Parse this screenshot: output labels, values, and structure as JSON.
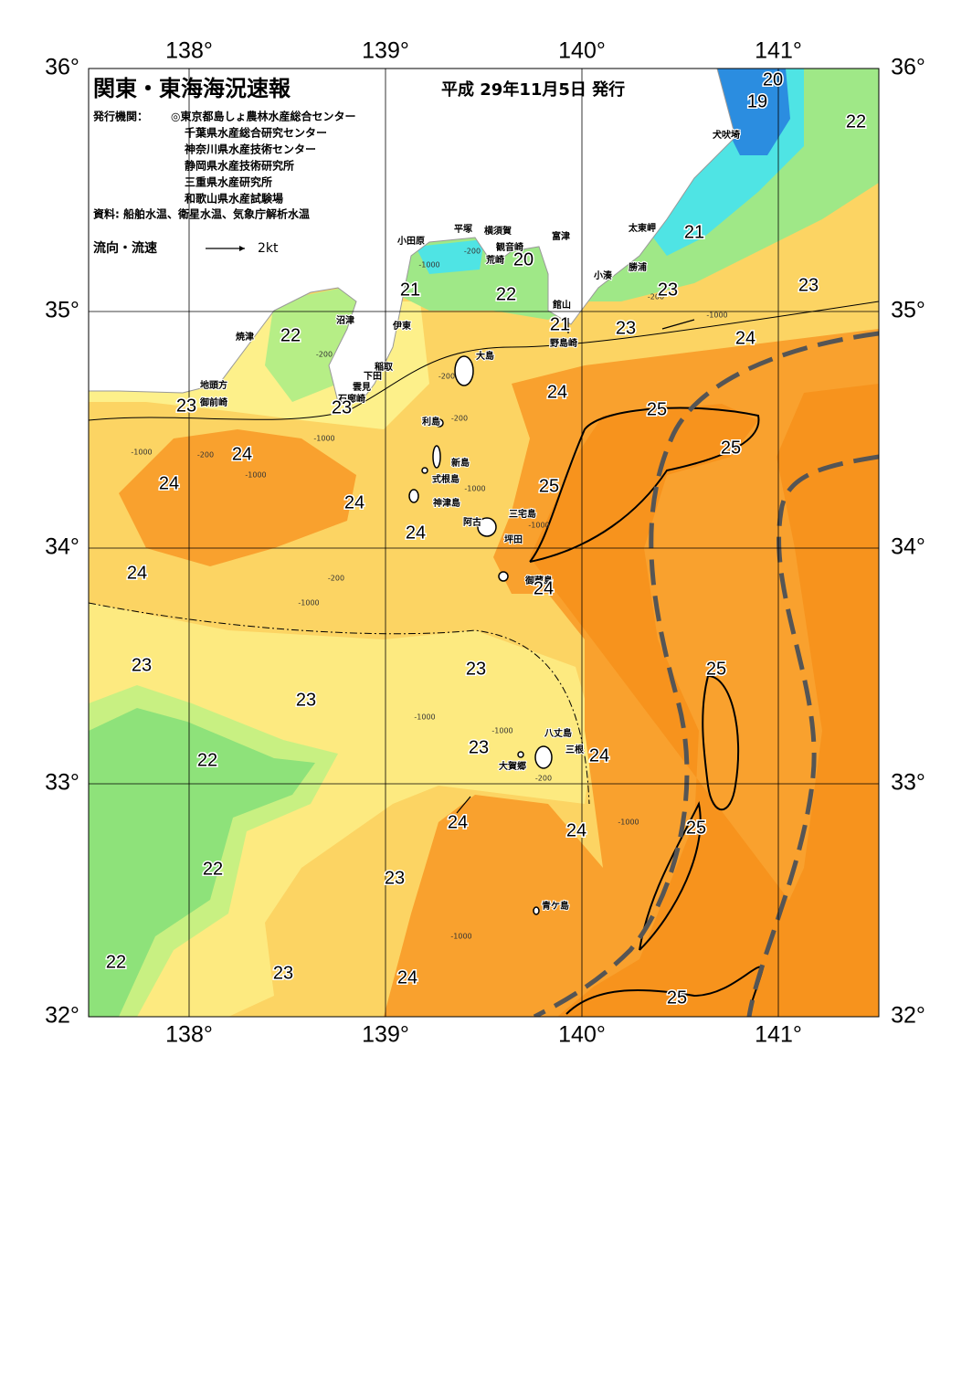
{
  "header": {
    "title": "関東・東海海況速報",
    "issue_date": "平成 29年11月5日 発行"
  },
  "issuers": {
    "label": "発行機関：",
    "list": [
      "◎東京都島しょ農林水産総合センター",
      "千葉県水産総合研究センター",
      "神奈川県水産技術センター",
      "静岡県水産技術研究所",
      "三重県水産研究所",
      "和歌山県水産試験場"
    ]
  },
  "sources": "資料: 船舶水温、衛星水温、気象庁解析水温",
  "legend": {
    "label": "流向・流速",
    "speed": "2kt"
  },
  "axes": {
    "longitude": [
      "138°",
      "139°",
      "140°",
      "141°"
    ],
    "latitude": [
      "36°",
      "35°",
      "34°",
      "33°",
      "32°"
    ]
  },
  "places": [
    "犬吠埼",
    "太東岬",
    "勝浦",
    "小湊",
    "富津",
    "横須賀",
    "観音崎",
    "荒崎",
    "平塚",
    "小田原",
    "館山",
    "野島崎",
    "大島",
    "沼津",
    "伊東",
    "焼津",
    "稲取",
    "下田",
    "雲見",
    "石廊崎",
    "地頭方",
    "御前崎",
    "利島",
    "新島",
    "式根島",
    "神津島",
    "三宅島",
    "阿古",
    "坪田",
    "御蔵島",
    "八丈島",
    "三根",
    "大賀郷",
    "青ケ島"
  ],
  "temperatures": [
    "20",
    "19",
    "22",
    "21",
    "20",
    "23",
    "21",
    "22",
    "23",
    "21",
    "23",
    "24",
    "22",
    "24",
    "25",
    "23",
    "23",
    "25",
    "24",
    "24",
    "25",
    "24",
    "24",
    "24",
    "24",
    "25",
    "23",
    "23",
    "23",
    "23",
    "24",
    "22",
    "24",
    "24",
    "25",
    "22",
    "23",
    "22",
    "23",
    "24",
    "25"
  ],
  "depth_labels": [
    "-1000",
    "-200",
    "-200",
    "-200",
    "-200",
    "-1000",
    "-200",
    "-1000",
    "-1000",
    "-1000",
    "-1000",
    "-200",
    "-1000",
    "-1000",
    "-1000",
    "-200",
    "-1000",
    "-1000",
    "-1000",
    "-200"
  ]
}
